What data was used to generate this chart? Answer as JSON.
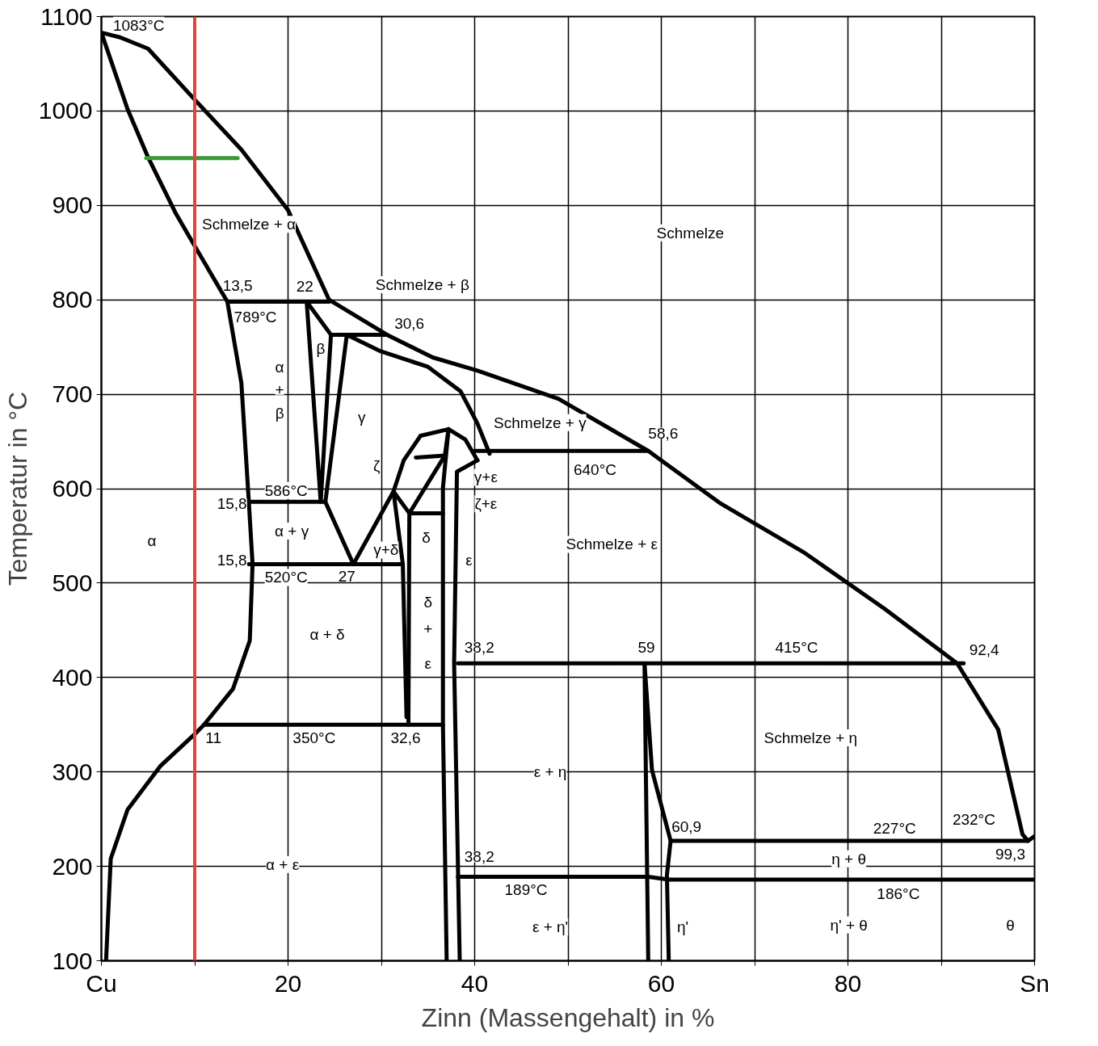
{
  "chart_data": {
    "type": "line",
    "xlabel": "Zinn (Massengehalt) in %",
    "ylabel": "Temperatur in °C",
    "xlim": [
      0,
      100
    ],
    "ylim": [
      100,
      1100
    ],
    "xticks": [
      {
        "value": 0,
        "label": "Cu"
      },
      {
        "value": 10,
        "label": null
      },
      20,
      {
        "value": 30,
        "label": null
      },
      40,
      {
        "value": 50,
        "label": null
      },
      60,
      {
        "value": 70,
        "label": null
      },
      80,
      {
        "value": 90,
        "label": null
      },
      {
        "value": 100,
        "label": "Sn"
      }
    ],
    "yticks": [
      100,
      200,
      300,
      400,
      500,
      600,
      700,
      800,
      900,
      1000,
      1100
    ],
    "grid": true,
    "line_style": "solid",
    "ref_lines": [
      {
        "axis": "x",
        "value": 10,
        "label": null,
        "color": "#e8413c"
      }
    ],
    "series": [
      {
        "color": "#000000",
        "x": [
          0.5,
          1.0,
          2.8,
          6.3,
          10,
          11,
          14.1,
          15.9,
          16.2,
          15.8,
          15,
          13.5,
          10,
          8,
          5,
          2.8,
          0,
          2,
          5,
          10,
          15,
          20,
          24.4,
          30.6,
          35.5,
          40.3,
          49,
          58.6,
          66.4,
          75.2,
          83.9,
          91.7,
          96.1,
          98.7,
          99.3,
          100
        ],
        "values": [
          100,
          208,
          260,
          306,
          340,
          350,
          388,
          439,
          520,
          586,
          712,
          798,
          857,
          891,
          951,
          1002,
          1083,
          1078,
          1066,
          1012,
          959,
          895,
          800,
          763,
          739,
          725,
          695,
          640,
          584,
          533,
          473,
          415,
          345,
          234,
          227,
          232
        ]
      },
      {
        "color": "#000000",
        "x": [
          13.5,
          24.4
        ],
        "values": [
          798,
          798
        ]
      },
      {
        "color": "#000000",
        "x": [
          24.6,
          22,
          23.5,
          24.6,
          30.6
        ],
        "values": [
          763,
          798,
          586,
          763,
          763
        ]
      },
      {
        "color": "#000000",
        "x": [
          15.8,
          24,
          26.3,
          29.8,
          35,
          38.5,
          40.3,
          41.6
        ],
        "values": [
          586,
          586,
          763,
          746,
          729,
          703,
          669,
          637
        ]
      },
      {
        "color": "#000000",
        "x": [
          24,
          27
        ],
        "values": [
          586,
          520
        ]
      },
      {
        "color": "#000000",
        "x": [
          15.8,
          32.3,
          32.7
        ],
        "values": [
          520,
          520,
          358
        ]
      },
      {
        "color": "#000000",
        "x": [
          40,
          58.6
        ],
        "values": [
          640,
          640
        ]
      },
      {
        "color": "#000000",
        "x": [
          27,
          31.3,
          32.4,
          34.2,
          37.2,
          39,
          40.3
        ],
        "values": [
          520,
          597,
          630,
          656,
          663,
          652,
          630
        ]
      },
      {
        "color": "#000000",
        "x": [
          33.7,
          36.8
        ],
        "values": [
          633,
          635
        ]
      },
      {
        "color": "#000000",
        "x": [
          33,
          36.6
        ],
        "values": [
          574,
          574
        ]
      },
      {
        "color": "#000000",
        "x": [
          32.3,
          31.3,
          33,
          32.9
        ],
        "values": [
          520,
          597,
          574,
          350
        ]
      },
      {
        "color": "#000000",
        "x": [
          37.2,
          36.8,
          33
        ],
        "values": [
          663,
          635,
          574
        ]
      },
      {
        "color": "#000000",
        "x": [
          37.2,
          36.6,
          36.6,
          37
        ],
        "values": [
          663,
          601,
          350,
          100
        ]
      },
      {
        "color": "#000000",
        "x": [
          40.3,
          38.1,
          37.8,
          38.4
        ],
        "values": [
          630,
          618,
          415,
          100
        ]
      },
      {
        "color": "#000000",
        "x": [
          11,
          36.6
        ],
        "values": [
          350,
          350
        ]
      },
      {
        "color": "#000000",
        "x": [
          38.2,
          92.4
        ],
        "values": [
          415,
          415
        ]
      },
      {
        "color": "#000000",
        "x": [
          58.6,
          58.2,
          59,
          61,
          99.3
        ],
        "values": [
          100,
          415,
          302,
          227,
          227
        ]
      },
      {
        "color": "#000000",
        "x": [
          61,
          60.6,
          60.8
        ],
        "values": [
          227,
          191,
          100
        ]
      },
      {
        "color": "#000000",
        "x": [
          38.2,
          58.6,
          60.8,
          100
        ],
        "values": [
          189,
          189,
          186,
          186
        ]
      },
      {
        "color": "#3a9a3a",
        "x": [
          4.8,
          14.6
        ],
        "values": [
          950,
          950
        ]
      }
    ],
    "annotations": [
      "1083°C",
      "Schmelze + α",
      "Schmelze",
      "Schmelze + β",
      "13,5",
      "22",
      "789°C",
      "30,6",
      "α",
      "+",
      "β",
      "β",
      "γ",
      "Schmelze + γ",
      "58,6",
      "640°C",
      "ζ",
      "γ+ε",
      "ζ+ε",
      "586°C",
      "15,8",
      "α + γ",
      "α",
      "γ+δ",
      "δ",
      "ε",
      "Schmelze + ε",
      "15,8",
      "520°C",
      "27",
      "δ",
      "+",
      "ε",
      "α + δ",
      "38,2",
      "59",
      "415°C",
      "92,4",
      "11",
      "350°C",
      "32,6",
      "Schmelze + η",
      "ε + η",
      "232°C",
      "60,9",
      "227°C",
      "99,3",
      "α + ε",
      "38,2",
      "η + θ",
      "189°C",
      "186°C",
      "ε + η'",
      "η'",
      "η' + θ",
      "θ"
    ]
  }
}
